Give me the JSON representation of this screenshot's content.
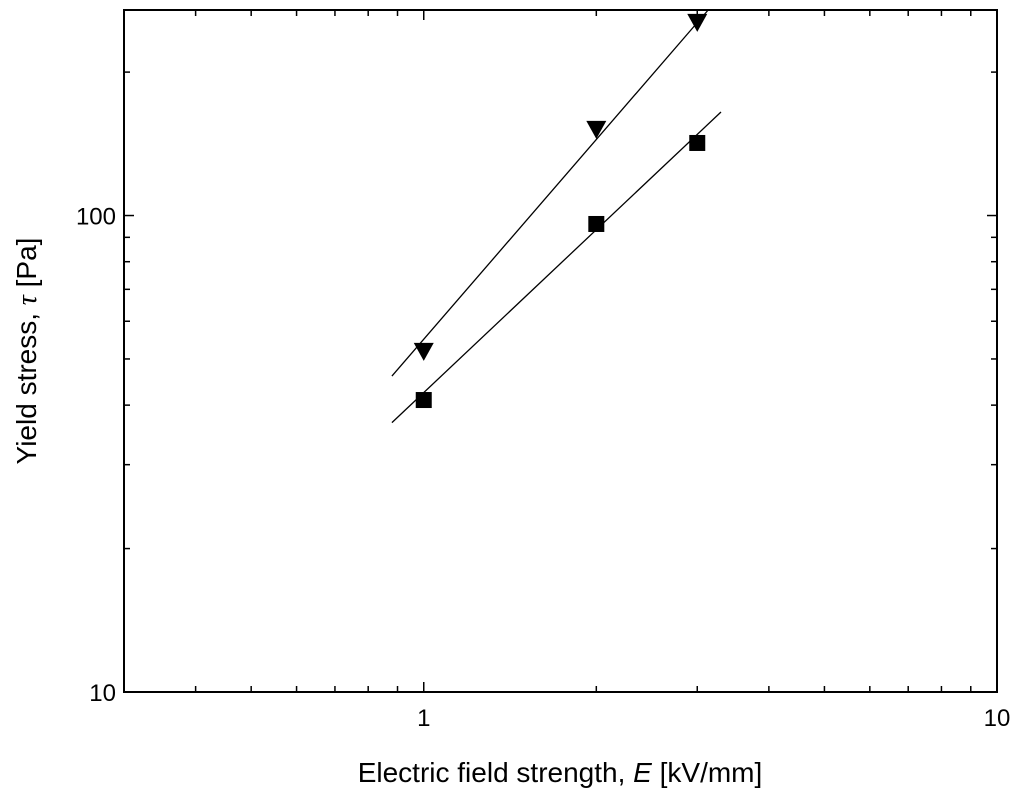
{
  "chart_data": {
    "type": "scatter",
    "xscale": "log",
    "yscale": "log",
    "xlim": [
      0.3,
      10
    ],
    "ylim": [
      10,
      270
    ],
    "x_ticks_labeled": [
      {
        "value": 1,
        "label": "1"
      },
      {
        "value": 10,
        "label": "10"
      }
    ],
    "y_ticks_labeled": [
      {
        "value": 10,
        "label": "10"
      },
      {
        "value": 100,
        "label": "100"
      }
    ],
    "xlabel": {
      "prefix": "Electric field strength, ",
      "symbol": "E",
      "suffix": " [kV/mm]"
    },
    "ylabel": {
      "prefix": "Yield stress, ",
      "symbol": "τ",
      "suffix": " [Pa]"
    },
    "grid": false,
    "legend": "none",
    "series": [
      {
        "marker": "triangle-down",
        "color": "#000000",
        "points": [
          {
            "x": 1,
            "y": 52
          },
          {
            "x": 2,
            "y": 152
          },
          {
            "x": 3,
            "y": 255
          }
        ],
        "fit_line": {
          "x_from": 0.88,
          "x_to": 3.45,
          "points_on_line": [
            {
              "x": 1,
              "y": 55
            },
            {
              "x": 3,
              "y": 254
            }
          ]
        }
      },
      {
        "marker": "square",
        "color": "#000000",
        "points": [
          {
            "x": 1,
            "y": 41
          },
          {
            "x": 2,
            "y": 96
          },
          {
            "x": 3,
            "y": 142
          }
        ],
        "fit_line": {
          "x_from": 0.88,
          "x_to": 3.3,
          "points_on_line": [
            {
              "x": 1,
              "y": 42.5
            },
            {
              "x": 3,
              "y": 148
            }
          ]
        }
      }
    ]
  }
}
